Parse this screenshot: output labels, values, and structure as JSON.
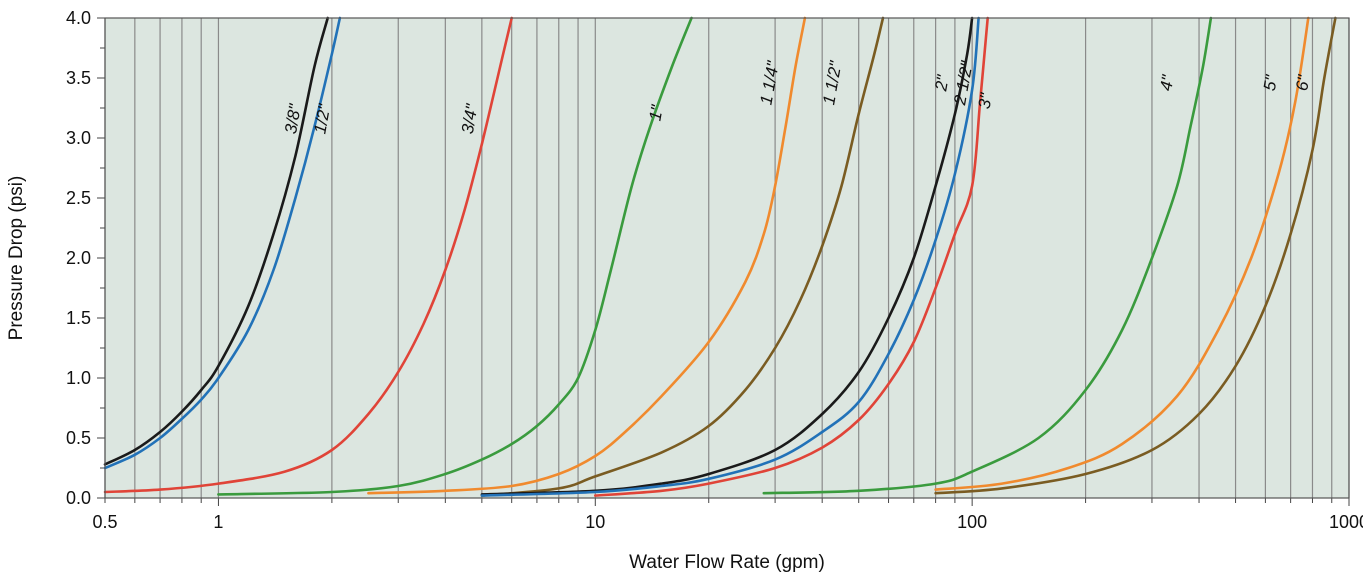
{
  "chart_data": {
    "type": "line",
    "title": "",
    "xlabel": "Water Flow Rate (gpm)",
    "ylabel": "Pressure Drop (psi)",
    "x_scale": "log",
    "xlim": [
      0.5,
      1000
    ],
    "ylim": [
      0,
      4.0
    ],
    "grid": true,
    "x_ticks": [
      "0.5",
      "1",
      "10",
      "100",
      "1000"
    ],
    "x_tick_values": [
      0.5,
      1,
      10,
      100,
      1000
    ],
    "y_ticks": [
      "0.0",
      "0.5",
      "1.0",
      "1.5",
      "2.0",
      "2.5",
      "3.0",
      "3.5",
      "4.0"
    ],
    "y_tick_values": [
      0,
      0.5,
      1.0,
      1.5,
      2.0,
      2.5,
      3.0,
      3.5,
      4.0
    ],
    "plot_background": "#dce6e0",
    "grid_color": "#8a8a8a",
    "series": [
      {
        "name": "3/8\"",
        "color": "#1a1a1a",
        "label_at": [
          1.63,
          3.15
        ],
        "points": [
          [
            0.5,
            0.28
          ],
          [
            0.6,
            0.4
          ],
          [
            0.7,
            0.55
          ],
          [
            0.8,
            0.72
          ],
          [
            0.9,
            0.9
          ],
          [
            1.0,
            1.1
          ],
          [
            1.2,
            1.6
          ],
          [
            1.4,
            2.2
          ],
          [
            1.6,
            2.85
          ],
          [
            1.8,
            3.6
          ],
          [
            1.95,
            4.0
          ]
        ]
      },
      {
        "name": "1/2\"",
        "color": "#2272b8",
        "label_at": [
          1.95,
          3.15
        ],
        "points": [
          [
            0.5,
            0.25
          ],
          [
            0.6,
            0.36
          ],
          [
            0.7,
            0.5
          ],
          [
            0.8,
            0.66
          ],
          [
            0.9,
            0.82
          ],
          [
            1.0,
            1.0
          ],
          [
            1.2,
            1.4
          ],
          [
            1.4,
            1.9
          ],
          [
            1.6,
            2.5
          ],
          [
            1.8,
            3.1
          ],
          [
            2.0,
            3.7
          ],
          [
            2.1,
            4.0
          ]
        ]
      },
      {
        "name": "3/4\"",
        "color": "#e04438",
        "label_at": [
          4.8,
          3.15
        ],
        "points": [
          [
            0.5,
            0.05
          ],
          [
            0.7,
            0.07
          ],
          [
            1.0,
            0.12
          ],
          [
            1.5,
            0.22
          ],
          [
            2.0,
            0.4
          ],
          [
            2.5,
            0.7
          ],
          [
            3.0,
            1.05
          ],
          [
            3.5,
            1.45
          ],
          [
            4.0,
            1.9
          ],
          [
            4.5,
            2.4
          ],
          [
            5.0,
            2.95
          ],
          [
            5.5,
            3.5
          ],
          [
            6.0,
            4.0
          ]
        ]
      },
      {
        "name": "1\"",
        "color": "#3a9b3e",
        "label_at": [
          15.0,
          3.2
        ],
        "points": [
          [
            1.0,
            0.03
          ],
          [
            2.0,
            0.05
          ],
          [
            3.0,
            0.1
          ],
          [
            4.0,
            0.2
          ],
          [
            5.0,
            0.32
          ],
          [
            6.0,
            0.45
          ],
          [
            7.0,
            0.6
          ],
          [
            8.0,
            0.78
          ],
          [
            9.0,
            1.0
          ],
          [
            10.0,
            1.4
          ],
          [
            11.0,
            1.9
          ],
          [
            12.5,
            2.6
          ],
          [
            14.0,
            3.1
          ],
          [
            16.0,
            3.6
          ],
          [
            18.0,
            4.0
          ]
        ]
      },
      {
        "name": "1 1/4\"",
        "color": "#f08a2e",
        "label_at": [
          30.0,
          3.45
        ],
        "points": [
          [
            2.5,
            0.04
          ],
          [
            4.0,
            0.06
          ],
          [
            6.0,
            0.1
          ],
          [
            8.0,
            0.2
          ],
          [
            10.0,
            0.35
          ],
          [
            12.0,
            0.55
          ],
          [
            15.0,
            0.85
          ],
          [
            20.0,
            1.3
          ],
          [
            25.0,
            1.8
          ],
          [
            28.0,
            2.2
          ],
          [
            30.0,
            2.6
          ],
          [
            32.0,
            3.1
          ],
          [
            34.0,
            3.6
          ],
          [
            36.0,
            4.0
          ]
        ]
      },
      {
        "name": "1 1/2\"",
        "color": "#7a5c22",
        "label_at": [
          44.0,
          3.45
        ],
        "points": [
          [
            5.0,
            0.02
          ],
          [
            8.0,
            0.08
          ],
          [
            10.0,
            0.18
          ],
          [
            15.0,
            0.38
          ],
          [
            20.0,
            0.6
          ],
          [
            25.0,
            0.9
          ],
          [
            30.0,
            1.25
          ],
          [
            35.0,
            1.65
          ],
          [
            40.0,
            2.1
          ],
          [
            45.0,
            2.6
          ],
          [
            50.0,
            3.2
          ],
          [
            55.0,
            3.7
          ],
          [
            58.0,
            4.0
          ]
        ]
      },
      {
        "name": "2\"",
        "color": "#1a1a1a",
        "label_at": [
          86.0,
          3.45
        ],
        "points": [
          [
            5.0,
            0.03
          ],
          [
            10.0,
            0.06
          ],
          [
            15.0,
            0.12
          ],
          [
            20.0,
            0.2
          ],
          [
            30.0,
            0.4
          ],
          [
            40.0,
            0.7
          ],
          [
            50.0,
            1.05
          ],
          [
            60.0,
            1.5
          ],
          [
            70.0,
            2.0
          ],
          [
            80.0,
            2.6
          ],
          [
            90.0,
            3.2
          ],
          [
            97.0,
            3.7
          ],
          [
            100.0,
            4.0
          ]
        ]
      },
      {
        "name": "2 1/2\"",
        "color": "#2272b8",
        "label_at": [
          98.0,
          3.45
        ],
        "points": [
          [
            5.0,
            0.02
          ],
          [
            10.0,
            0.05
          ],
          [
            15.0,
            0.1
          ],
          [
            20.0,
            0.16
          ],
          [
            30.0,
            0.32
          ],
          [
            40.0,
            0.55
          ],
          [
            50.0,
            0.8
          ],
          [
            60.0,
            1.2
          ],
          [
            70.0,
            1.65
          ],
          [
            80.0,
            2.15
          ],
          [
            90.0,
            2.7
          ],
          [
            100.0,
            3.4
          ],
          [
            104.0,
            4.0
          ]
        ]
      },
      {
        "name": "3\"",
        "color": "#e04438",
        "label_at": [
          112.0,
          3.3
        ],
        "points": [
          [
            10.0,
            0.02
          ],
          [
            15.0,
            0.06
          ],
          [
            20.0,
            0.12
          ],
          [
            30.0,
            0.25
          ],
          [
            40.0,
            0.42
          ],
          [
            50.0,
            0.65
          ],
          [
            60.0,
            0.95
          ],
          [
            70.0,
            1.3
          ],
          [
            80.0,
            1.75
          ],
          [
            90.0,
            2.2
          ],
          [
            100.0,
            2.6
          ],
          [
            105.0,
            3.3
          ],
          [
            110.0,
            4.0
          ]
        ]
      },
      {
        "name": "4\"",
        "color": "#3a9b3e",
        "label_at": [
          340.0,
          3.45
        ],
        "points": [
          [
            28.0,
            0.04
          ],
          [
            50.0,
            0.06
          ],
          [
            80.0,
            0.12
          ],
          [
            100.0,
            0.22
          ],
          [
            150.0,
            0.5
          ],
          [
            200.0,
            0.9
          ],
          [
            250.0,
            1.4
          ],
          [
            300.0,
            2.0
          ],
          [
            350.0,
            2.6
          ],
          [
            380.0,
            3.1
          ],
          [
            410.0,
            3.6
          ],
          [
            430.0,
            4.0
          ]
        ]
      },
      {
        "name": "5\"",
        "color": "#f08a2e",
        "label_at": [
          640.0,
          3.45
        ],
        "points": [
          [
            80.0,
            0.07
          ],
          [
            120.0,
            0.12
          ],
          [
            180.0,
            0.25
          ],
          [
            250.0,
            0.45
          ],
          [
            350.0,
            0.85
          ],
          [
            450.0,
            1.4
          ],
          [
            550.0,
            2.0
          ],
          [
            650.0,
            2.7
          ],
          [
            720.0,
            3.3
          ],
          [
            780.0,
            4.0
          ]
        ]
      },
      {
        "name": "6\"",
        "color": "#7a5c22",
        "label_at": [
          780.0,
          3.45
        ],
        "points": [
          [
            80.0,
            0.04
          ],
          [
            120.0,
            0.08
          ],
          [
            200.0,
            0.2
          ],
          [
            300.0,
            0.4
          ],
          [
            400.0,
            0.7
          ],
          [
            500.0,
            1.1
          ],
          [
            600.0,
            1.6
          ],
          [
            700.0,
            2.2
          ],
          [
            800.0,
            2.9
          ],
          [
            860.0,
            3.5
          ],
          [
            920.0,
            4.0
          ]
        ]
      }
    ]
  }
}
